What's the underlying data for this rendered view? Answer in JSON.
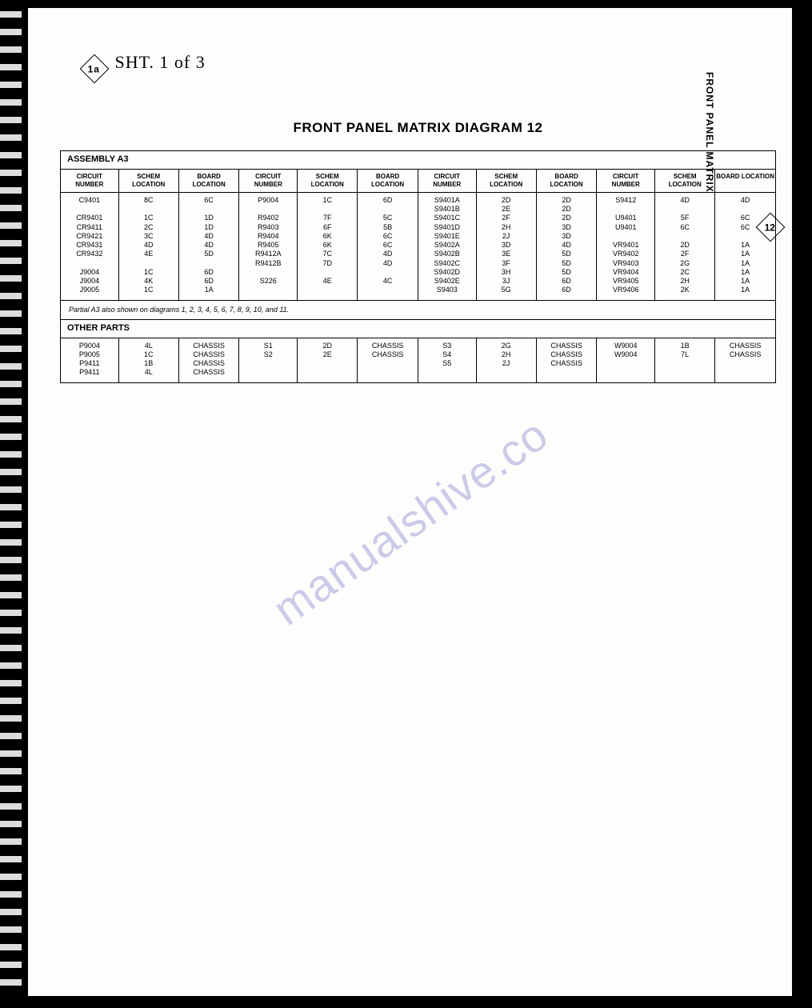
{
  "handnote": {
    "badge": "1a",
    "text": "SHT. 1 of 3"
  },
  "side": {
    "vtext": "FRONT PANEL MATRIX",
    "badge": "12"
  },
  "title": "FRONT PANEL MATRIX DIAGRAM 12",
  "watermark": "manualshive.co",
  "headers": {
    "circuit": "CIRCUIT NUMBER",
    "schem": "SCHEM LOCATION",
    "board": "BOARD LOCATION"
  },
  "assembly": {
    "label": "ASSEMBLY A3",
    "note": "Partial A3 also shown on diagrams 1, 2, 3, 4, 5, 6, 7, 8, 9, 10, and 11.",
    "group1": {
      "circuit": [
        "C9401",
        "",
        "CR9401",
        "CR9411",
        "CR9421",
        "CR9431",
        "CR9432",
        "",
        "J9004",
        "J9004",
        "J9005"
      ],
      "schem": [
        "8C",
        "",
        "1C",
        "2C",
        "3C",
        "4D",
        "4E",
        "",
        "1C",
        "4K",
        "1C"
      ],
      "board": [
        "6C",
        "",
        "1D",
        "1D",
        "4D",
        "4D",
        "5D",
        "",
        "6D",
        "6D",
        "1A"
      ]
    },
    "group2": {
      "circuit": [
        "P9004",
        "",
        "R9402",
        "R9403",
        "R9404",
        "R9405",
        "R9412A",
        "R9412B",
        "",
        "S226"
      ],
      "schem": [
        "1C",
        "",
        "7F",
        "6F",
        "6K",
        "6K",
        "7C",
        "7D",
        "",
        "4E"
      ],
      "board": [
        "6D",
        "",
        "5C",
        "5B",
        "6C",
        "6C",
        "4D",
        "4D",
        "",
        "4C"
      ]
    },
    "group3": {
      "circuit": [
        "S9401A",
        "S9401B",
        "S9401C",
        "S9401D",
        "S9401E",
        "S9402A",
        "S9402B",
        "S9402C",
        "S9402D",
        "S9402E",
        "S9403"
      ],
      "schem": [
        "2D",
        "2E",
        "2F",
        "2H",
        "2J",
        "3D",
        "3E",
        "3F",
        "3H",
        "3J",
        "5G"
      ],
      "board": [
        "2D",
        "2D",
        "2D",
        "3D",
        "3D",
        "4D",
        "5D",
        "5D",
        "5D",
        "6D",
        "6D"
      ]
    },
    "group4": {
      "circuit": [
        "S9412",
        "",
        "U9401",
        "U9401",
        "",
        "VR9401",
        "VR9402",
        "VR9403",
        "VR9404",
        "VR9405",
        "VR9406"
      ],
      "schem": [
        "4D",
        "",
        "5F",
        "6C",
        "",
        "2D",
        "2F",
        "2G",
        "2C",
        "2H",
        "2K"
      ],
      "board": [
        "4D",
        "",
        "6C",
        "6C",
        "",
        "1A",
        "1A",
        "1A",
        "1A",
        "1A",
        "1A"
      ]
    }
  },
  "other": {
    "label": "OTHER PARTS",
    "group1": {
      "circuit": [
        "P9004",
        "P9005",
        "P9411",
        "P9411"
      ],
      "schem": [
        "4L",
        "1C",
        "1B",
        "4L"
      ],
      "board": [
        "CHASSIS",
        "CHASSIS",
        "CHASSIS",
        "CHASSIS"
      ]
    },
    "group2": {
      "circuit": [
        "S1",
        "S2"
      ],
      "schem": [
        "2D",
        "2E"
      ],
      "board": [
        "CHASSIS",
        "CHASSIS"
      ]
    },
    "group3": {
      "circuit": [
        "S3",
        "S4",
        "S5"
      ],
      "schem": [
        "2G",
        "2H",
        "2J"
      ],
      "board": [
        "CHASSIS",
        "CHASSIS",
        "CHASSIS"
      ]
    },
    "group4": {
      "circuit": [
        "W9004",
        "W9004"
      ],
      "schem": [
        "1B",
        "7L"
      ],
      "board": [
        "CHASSIS",
        "CHASSIS"
      ]
    }
  }
}
